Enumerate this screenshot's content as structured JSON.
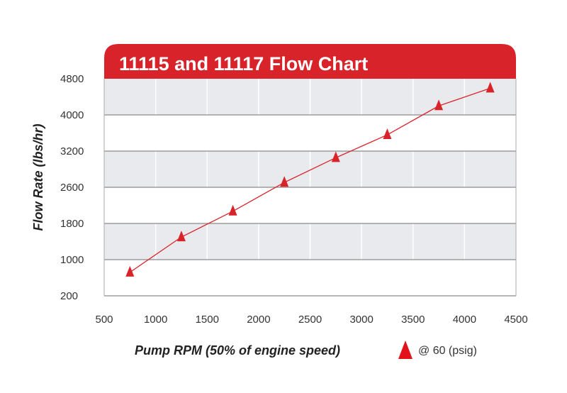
{
  "chart_data": {
    "type": "line",
    "title": "11115 and 11117 Flow Chart",
    "xlabel": "Pump RPM (50% of engine speed)",
    "ylabel": "Flow Rate (lbs/hr)",
    "xlim": [
      500,
      4500
    ],
    "x_ticks": [
      "500",
      "1000",
      "1500",
      "2000",
      "2500",
      "3000",
      "3500",
      "4000",
      "4500"
    ],
    "y_ticks": [
      "4800",
      "4000",
      "3200",
      "2600",
      "1800",
      "1000",
      "200"
    ],
    "grid": true,
    "legend_position": "bottom-right",
    "series": [
      {
        "name": "@ 60 (psig)",
        "marker": "triangle",
        "x": [
          750,
          1250,
          1750,
          2250,
          2750,
          3250,
          3750,
          4250
        ],
        "y": [
          720,
          1500,
          2070,
          2680,
          3090,
          3560,
          4200,
          4590
        ]
      }
    ],
    "colors": {
      "accent": "#d9232a",
      "band": "#e9eaee",
      "grid": "#8a8a8a"
    }
  }
}
